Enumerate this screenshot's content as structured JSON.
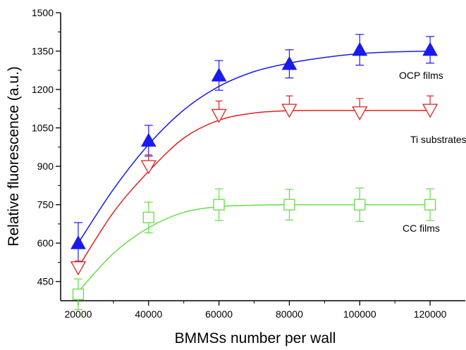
{
  "chart_data": {
    "type": "scatter",
    "xlabel": "BMMSs number per wall",
    "ylabel": "Relative fluorescence (a.u.)",
    "xlim": [
      15000,
      130000
    ],
    "ylim": [
      375,
      1500
    ],
    "x_ticks": [
      20000,
      40000,
      60000,
      80000,
      100000,
      120000
    ],
    "y_ticks": [
      450,
      600,
      750,
      900,
      1050,
      1200,
      1350,
      1500
    ],
    "x": [
      20000,
      40000,
      60000,
      80000,
      100000,
      120000
    ],
    "series": [
      {
        "name": "OCP films",
        "marker": "filled-triangle-up",
        "color": "#1a1aee",
        "values": [
          600,
          1000,
          1255,
          1300,
          1355,
          1355
        ],
        "error": [
          80,
          60,
          58,
          55,
          60,
          52
        ],
        "fit": [
          [
            20000,
            600
          ],
          [
            30000,
            810
          ],
          [
            40000,
            985
          ],
          [
            50000,
            1120
          ],
          [
            60000,
            1212
          ],
          [
            70000,
            1270
          ],
          [
            80000,
            1303
          ],
          [
            90000,
            1325
          ],
          [
            100000,
            1340
          ],
          [
            110000,
            1347
          ],
          [
            120000,
            1350
          ]
        ]
      },
      {
        "name": "Ti substrates",
        "marker": "open-triangle-down",
        "color": "#e02020",
        "values": [
          505,
          900,
          1100,
          1120,
          1110,
          1120
        ],
        "error": [
          25,
          45,
          55,
          55,
          55,
          55
        ],
        "fit": [
          [
            20000,
            505
          ],
          [
            30000,
            720
          ],
          [
            40000,
            880
          ],
          [
            50000,
            1010
          ],
          [
            60000,
            1080
          ],
          [
            70000,
            1108
          ],
          [
            80000,
            1117
          ],
          [
            90000,
            1118
          ],
          [
            100000,
            1118
          ],
          [
            110000,
            1118
          ],
          [
            120000,
            1118
          ]
        ]
      },
      {
        "name": "CC films",
        "marker": "open-square",
        "color": "#66dd44",
        "values": [
          400,
          700,
          750,
          750,
          750,
          750
        ],
        "error": [
          60,
          60,
          62,
          60,
          65,
          62
        ],
        "fit": [
          [
            20000,
            410
          ],
          [
            30000,
            560
          ],
          [
            40000,
            660
          ],
          [
            50000,
            720
          ],
          [
            60000,
            742
          ],
          [
            70000,
            748
          ],
          [
            80000,
            750
          ],
          [
            90000,
            750
          ],
          [
            100000,
            750
          ],
          [
            110000,
            750
          ],
          [
            120000,
            750
          ]
        ]
      }
    ]
  }
}
